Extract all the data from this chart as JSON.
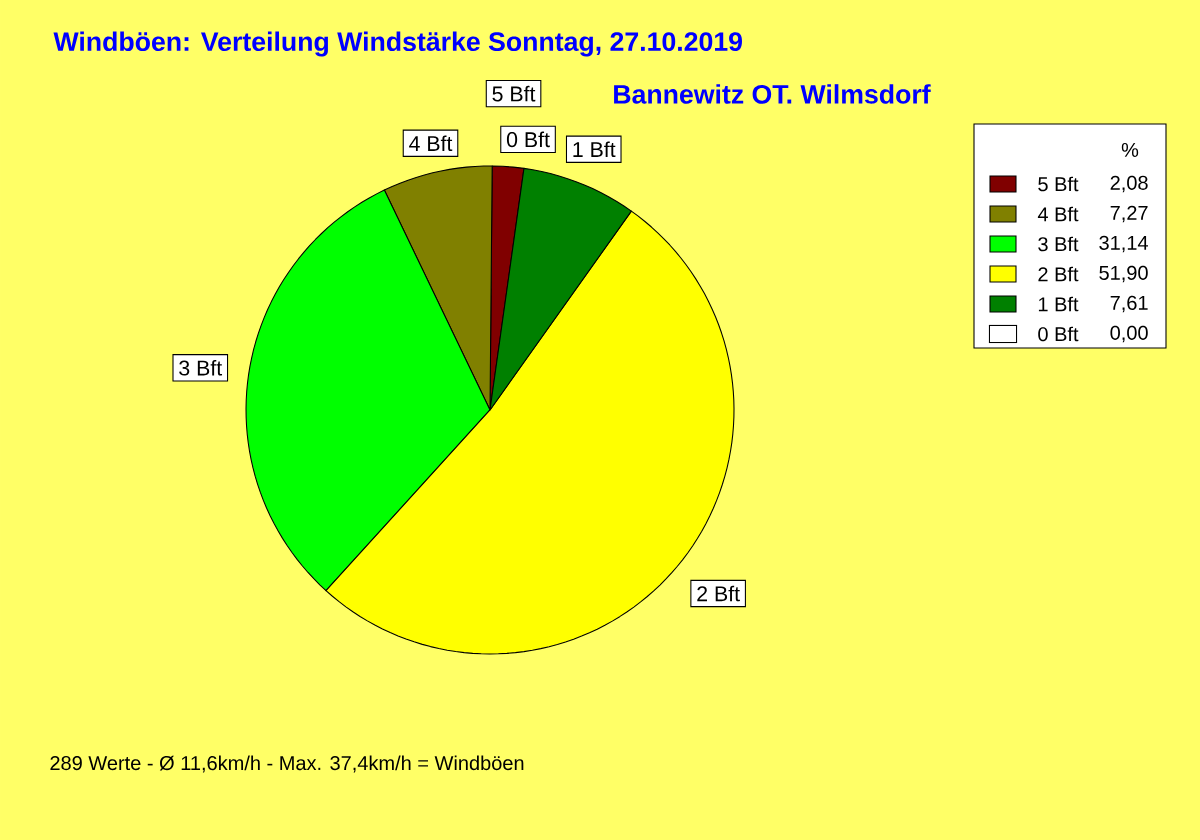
{
  "chart_data": {
    "type": "pie",
    "title": "Windböen: Verteilung Windstärke  Sonntag, 27.10.2019",
    "subtitle": "Bannewitz OT. Wilmsdorf",
    "categories": [
      "5 Bft",
      "4 Bft",
      "3 Bft",
      "2 Bft",
      "1 Bft",
      "0 Bft"
    ],
    "values": [
      2.08,
      7.27,
      31.14,
      51.9,
      7.61,
      0.0
    ],
    "value_labels": [
      "2,08",
      "7,27",
      "31,14",
      "51,90",
      "7,61",
      "0,00"
    ],
    "colors": [
      "#800000",
      "#808000",
      "#00ff00",
      "#ffff00",
      "#008000",
      "#ffffff"
    ],
    "legend": "top right",
    "legend_title": "%",
    "annotations": [
      "289 Werte   -   Ø 11,6km/h  -  Max. 37,4km/h = Windböen"
    ]
  }
}
